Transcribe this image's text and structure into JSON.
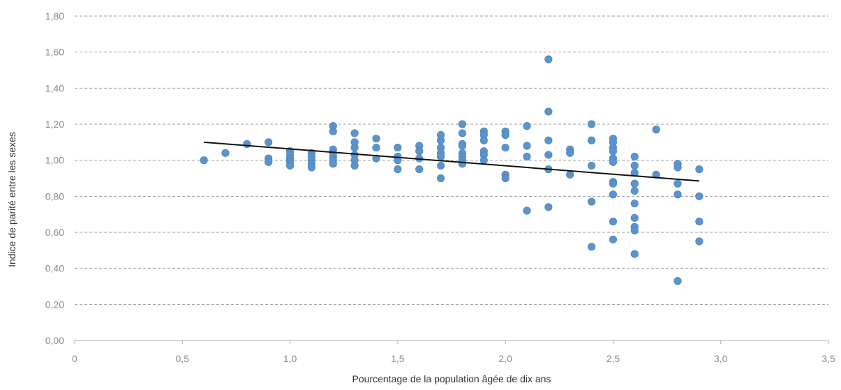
{
  "chart_data": {
    "type": "scatter",
    "xlabel": "Pourcentage de la population âgée de dix ans",
    "ylabel": "Indice de parité entre les sexes",
    "xlim": [
      0,
      3.5
    ],
    "ylim": [
      0,
      1.8
    ],
    "x_ticks": [
      "0",
      "0,5",
      "1,0",
      "1,5",
      "2,0",
      "2,5",
      "3,0",
      "3,5"
    ],
    "y_ticks": [
      "0,00",
      "0,20",
      "0,40",
      "0,60",
      "0,80",
      "1,00",
      "1,20",
      "1,40",
      "1,60",
      "1,80"
    ],
    "grid": "horizontal dashed",
    "point_color": "#5b93cc",
    "trendline_color": "#111111",
    "trendline": {
      "x": [
        0.6,
        2.9
      ],
      "y": [
        1.1,
        0.885
      ]
    },
    "points": [
      [
        0.6,
        1.0
      ],
      [
        0.7,
        1.04
      ],
      [
        0.8,
        1.09
      ],
      [
        0.9,
        1.1
      ],
      [
        0.9,
        1.01
      ],
      [
        0.9,
        0.99
      ],
      [
        1.0,
        1.05
      ],
      [
        1.0,
        1.03
      ],
      [
        1.0,
        1.01
      ],
      [
        1.0,
        1.0
      ],
      [
        1.0,
        0.99
      ],
      [
        1.0,
        0.97
      ],
      [
        1.1,
        1.04
      ],
      [
        1.1,
        1.02
      ],
      [
        1.1,
        1.0
      ],
      [
        1.1,
        0.98
      ],
      [
        1.1,
        0.96
      ],
      [
        1.2,
        1.19
      ],
      [
        1.2,
        1.16
      ],
      [
        1.2,
        1.06
      ],
      [
        1.2,
        1.04
      ],
      [
        1.2,
        1.02
      ],
      [
        1.2,
        1.0
      ],
      [
        1.2,
        0.98
      ],
      [
        1.3,
        1.15
      ],
      [
        1.3,
        1.1
      ],
      [
        1.3,
        1.07
      ],
      [
        1.3,
        1.03
      ],
      [
        1.3,
        1.0
      ],
      [
        1.3,
        0.97
      ],
      [
        1.4,
        1.12
      ],
      [
        1.4,
        1.07
      ],
      [
        1.4,
        1.01
      ],
      [
        1.5,
        1.07
      ],
      [
        1.5,
        1.02
      ],
      [
        1.5,
        1.0
      ],
      [
        1.5,
        0.95
      ],
      [
        1.6,
        1.08
      ],
      [
        1.6,
        1.05
      ],
      [
        1.6,
        1.01
      ],
      [
        1.6,
        0.95
      ],
      [
        1.7,
        1.14
      ],
      [
        1.7,
        1.11
      ],
      [
        1.7,
        1.07
      ],
      [
        1.7,
        1.04
      ],
      [
        1.7,
        1.02
      ],
      [
        1.7,
        0.97
      ],
      [
        1.7,
        0.9
      ],
      [
        1.8,
        1.2
      ],
      [
        1.8,
        1.15
      ],
      [
        1.8,
        1.09
      ],
      [
        1.8,
        1.08
      ],
      [
        1.8,
        1.04
      ],
      [
        1.8,
        1.02
      ],
      [
        1.8,
        1.0
      ],
      [
        1.8,
        0.98
      ],
      [
        1.9,
        1.16
      ],
      [
        1.9,
        1.14
      ],
      [
        1.9,
        1.11
      ],
      [
        1.9,
        1.05
      ],
      [
        1.9,
        1.03
      ],
      [
        1.9,
        1.0
      ],
      [
        2.0,
        1.16
      ],
      [
        2.0,
        1.14
      ],
      [
        2.0,
        1.07
      ],
      [
        2.0,
        0.92
      ],
      [
        2.0,
        0.9
      ],
      [
        2.1,
        1.19
      ],
      [
        2.1,
        1.08
      ],
      [
        2.1,
        1.02
      ],
      [
        2.1,
        0.72
      ],
      [
        2.2,
        1.56
      ],
      [
        2.2,
        1.27
      ],
      [
        2.2,
        1.11
      ],
      [
        2.2,
        1.03
      ],
      [
        2.2,
        0.95
      ],
      [
        2.2,
        0.74
      ],
      [
        2.3,
        1.06
      ],
      [
        2.3,
        1.04
      ],
      [
        2.3,
        0.92
      ],
      [
        2.4,
        1.2
      ],
      [
        2.4,
        1.11
      ],
      [
        2.4,
        0.97
      ],
      [
        2.4,
        0.77
      ],
      [
        2.4,
        0.52
      ],
      [
        2.5,
        1.12
      ],
      [
        2.5,
        1.1
      ],
      [
        2.5,
        1.07
      ],
      [
        2.5,
        1.05
      ],
      [
        2.5,
        1.01
      ],
      [
        2.5,
        0.99
      ],
      [
        2.5,
        0.88
      ],
      [
        2.5,
        0.87
      ],
      [
        2.5,
        0.81
      ],
      [
        2.5,
        0.66
      ],
      [
        2.5,
        0.56
      ],
      [
        2.6,
        1.02
      ],
      [
        2.6,
        0.97
      ],
      [
        2.6,
        0.93
      ],
      [
        2.6,
        0.87
      ],
      [
        2.6,
        0.83
      ],
      [
        2.6,
        0.76
      ],
      [
        2.6,
        0.68
      ],
      [
        2.6,
        0.63
      ],
      [
        2.6,
        0.61
      ],
      [
        2.6,
        0.48
      ],
      [
        2.7,
        1.17
      ],
      [
        2.7,
        0.92
      ],
      [
        2.8,
        0.98
      ],
      [
        2.8,
        0.96
      ],
      [
        2.8,
        0.87
      ],
      [
        2.8,
        0.81
      ],
      [
        2.8,
        0.33
      ],
      [
        2.9,
        0.95
      ],
      [
        2.9,
        0.8
      ],
      [
        2.9,
        0.66
      ],
      [
        2.9,
        0.55
      ]
    ]
  }
}
